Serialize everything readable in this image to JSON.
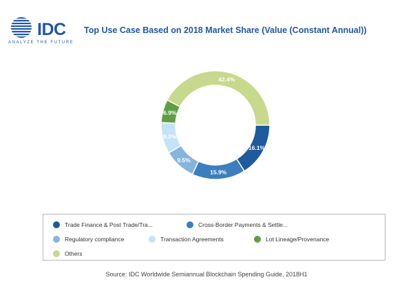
{
  "logo": {
    "brand": "IDC",
    "tagline": "ANALYZE THE FUTURE"
  },
  "chart_data": {
    "type": "pie",
    "title": "Top Use Case Based on 2018 Market Share (Value (Constant Annual))",
    "hole": true,
    "legend_position": "bottom",
    "categories": [
      "Trade Finance & Post Trade/Tra...",
      "Cross-Border Payments & Settle...",
      "Regulatory compliance",
      "Transaction Agreements",
      "Lot Lineage/Provenance",
      "Others"
    ],
    "values": [
      16.1,
      15.9,
      9.5,
      9.3,
      6.9,
      42.4
    ],
    "value_labels": [
      "16.1%",
      "15.9%",
      "9.5%",
      "9.3%",
      "6.9%",
      "42.4%"
    ],
    "colors": [
      "#1e5a9c",
      "#3b7fbf",
      "#87b4de",
      "#c5e3f8",
      "#5f9e43",
      "#c6d98c"
    ]
  },
  "source": "Source: IDC Worldwide Semiannual Blockchain Spending Guide, 2018H1"
}
